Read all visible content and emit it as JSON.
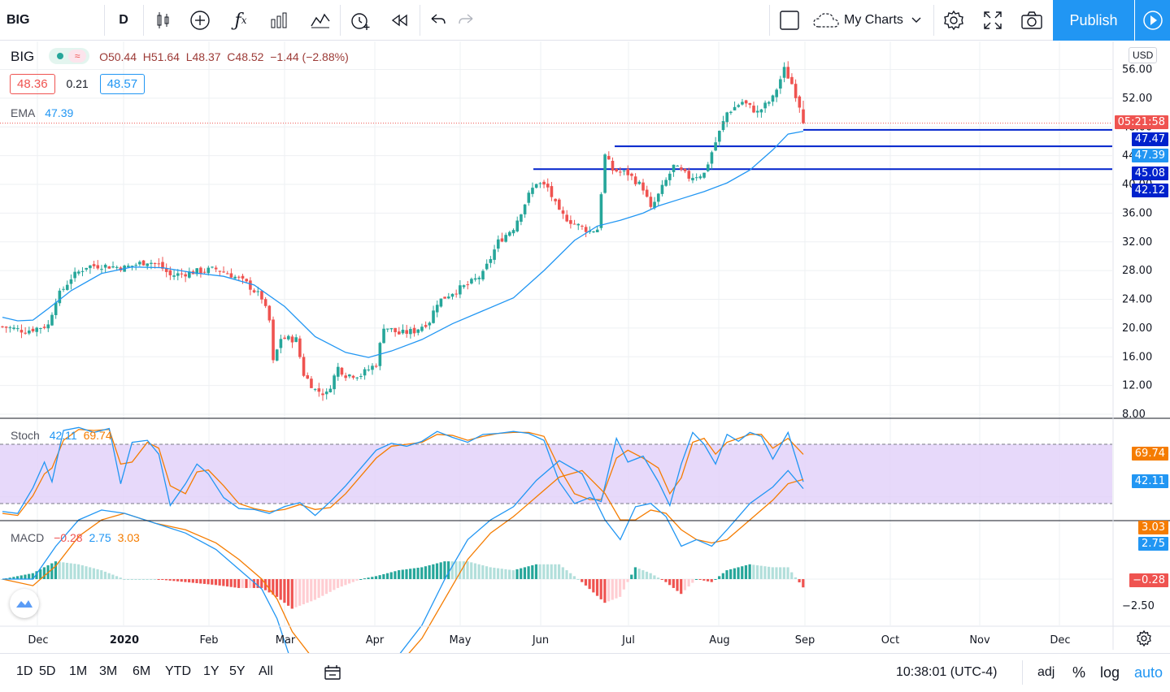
{
  "toolbar": {
    "symbol": "BIG",
    "interval": "D",
    "my_charts": "My Charts",
    "publish": "Publish",
    "icons": [
      "candles-icon",
      "add-icon",
      "fx-icon",
      "bars-icon",
      "templates-icon",
      "alert-icon",
      "replay-icon",
      "undo-icon",
      "redo-icon",
      "square-icon",
      "cloud-icon",
      "gear-icon",
      "fullscreen-icon",
      "camera-icon",
      "play-icon"
    ]
  },
  "legend": {
    "symbol": "BIG",
    "ohlc": "O50.44  H51.64  L48.37  C48.52  −1.44 (−2.88%)",
    "bid": "48.36",
    "spread": "0.21",
    "ask": "48.57",
    "ema_label": "EMA",
    "ema_value": "47.39",
    "stoch_label": "Stoch",
    "stoch_k": "42.11",
    "stoch_d": "69.74",
    "macd_label": "MACD",
    "macd_hist": "−0.28",
    "macd_line": "2.75",
    "macd_signal": "3.03"
  },
  "price_scale": {
    "currency": "USD",
    "countdown": "05:21:58"
  },
  "colors": {
    "up": "#26a69a",
    "down": "#ef5350",
    "ema": "#2196f3",
    "stoch_k": "#2196f3",
    "stoch_d": "#f57c00",
    "band": "#e1cff9",
    "hline": "#0022cc",
    "accent": "#2196f3"
  },
  "chart_data": {
    "type": "candlestick",
    "price_axis": {
      "ticks": [
        "56.00",
        "52.00",
        "48.00",
        "44.00",
        "40.00",
        "36.00",
        "32.00",
        "28.00",
        "24.00",
        "20.00",
        "16.00",
        "12.00",
        "8.00"
      ],
      "ylim": [
        8,
        56
      ]
    },
    "time_axis": [
      "Dec",
      "2020",
      "Feb",
      "Mar",
      "Apr",
      "May",
      "Jun",
      "Jul",
      "Aug",
      "Sep",
      "Oct",
      "Nov",
      "Dec"
    ],
    "last_candle": {
      "open": 50.44,
      "high": 51.64,
      "low": 48.37,
      "close": 48.52
    },
    "ema_points": [
      [
        0,
        21.5
      ],
      [
        4,
        21.0
      ],
      [
        8,
        21.1
      ],
      [
        12,
        22.7
      ],
      [
        18,
        25.2
      ],
      [
        26,
        27.6
      ],
      [
        34,
        28.5
      ],
      [
        42,
        28.4
      ],
      [
        50,
        27.7
      ],
      [
        58,
        27.2
      ],
      [
        66,
        26.0
      ],
      [
        74,
        23.0
      ],
      [
        82,
        18.8
      ],
      [
        90,
        16.6
      ],
      [
        96,
        15.9
      ],
      [
        102,
        16.8
      ],
      [
        110,
        18.4
      ],
      [
        118,
        20.6
      ],
      [
        126,
        22.4
      ],
      [
        134,
        24.2
      ],
      [
        142,
        28.0
      ],
      [
        150,
        32.2
      ],
      [
        156,
        34.2
      ],
      [
        162,
        35.0
      ],
      [
        168,
        36.0
      ],
      [
        172,
        37.0
      ],
      [
        178,
        38.0
      ],
      [
        184,
        39.0
      ],
      [
        190,
        40.2
      ],
      [
        196,
        42.0
      ],
      [
        202,
        44.8
      ],
      [
        206,
        47.0
      ],
      [
        210,
        47.39
      ]
    ],
    "horizontal_lines": [
      47.47,
      45.08,
      42.12
    ],
    "price_labels": {
      "h1": "47.47",
      "ema": "47.39",
      "h2": "45.08",
      "h3": "42.12"
    },
    "stoch": {
      "levels": [
        80,
        20
      ],
      "k_last": 42.11,
      "d_last": 69.74,
      "labels": {
        "d": "69.74",
        "k": "42.11"
      },
      "k_points": [
        [
          0,
          12
        ],
        [
          4,
          10
        ],
        [
          8,
          36
        ],
        [
          11,
          62
        ],
        [
          13,
          42
        ],
        [
          16,
          94
        ],
        [
          20,
          97
        ],
        [
          24,
          92
        ],
        [
          28,
          96
        ],
        [
          31,
          40
        ],
        [
          34,
          82
        ],
        [
          38,
          84
        ],
        [
          41,
          70
        ],
        [
          44,
          18
        ],
        [
          48,
          40
        ],
        [
          51,
          60
        ],
        [
          54,
          50
        ],
        [
          58,
          26
        ],
        [
          62,
          15
        ],
        [
          66,
          14
        ],
        [
          70,
          10
        ],
        [
          74,
          17
        ],
        [
          78,
          21
        ],
        [
          82,
          8
        ],
        [
          86,
          22
        ],
        [
          90,
          38
        ],
        [
          94,
          56
        ],
        [
          98,
          74
        ],
        [
          102,
          81
        ],
        [
          106,
          78
        ],
        [
          110,
          83
        ],
        [
          114,
          93
        ],
        [
          118,
          87
        ],
        [
          122,
          82
        ],
        [
          126,
          90
        ],
        [
          130,
          91
        ],
        [
          134,
          93
        ],
        [
          138,
          91
        ],
        [
          142,
          84
        ],
        [
          146,
          42
        ],
        [
          150,
          20
        ],
        [
          154,
          26
        ],
        [
          157,
          22
        ],
        [
          161,
          86
        ],
        [
          164,
          62
        ],
        [
          168,
          68
        ],
        [
          172,
          42
        ],
        [
          175,
          18
        ],
        [
          178,
          60
        ],
        [
          181,
          92
        ],
        [
          184,
          80
        ],
        [
          187,
          60
        ],
        [
          190,
          90
        ],
        [
          193,
          83
        ],
        [
          196,
          92
        ],
        [
          199,
          88
        ],
        [
          202,
          65
        ],
        [
          206,
          92
        ],
        [
          210,
          42
        ]
      ],
      "d_points": [
        [
          0,
          10
        ],
        [
          4,
          8
        ],
        [
          8,
          28
        ],
        [
          11,
          50
        ],
        [
          13,
          56
        ],
        [
          16,
          84
        ],
        [
          20,
          95
        ],
        [
          24,
          94
        ],
        [
          28,
          95
        ],
        [
          31,
          60
        ],
        [
          34,
          62
        ],
        [
          38,
          82
        ],
        [
          41,
          76
        ],
        [
          44,
          38
        ],
        [
          48,
          30
        ],
        [
          51,
          52
        ],
        [
          54,
          54
        ],
        [
          58,
          38
        ],
        [
          62,
          20
        ],
        [
          66,
          15
        ],
        [
          70,
          12
        ],
        [
          74,
          14
        ],
        [
          78,
          19
        ],
        [
          82,
          14
        ],
        [
          86,
          16
        ],
        [
          90,
          30
        ],
        [
          94,
          48
        ],
        [
          98,
          66
        ],
        [
          102,
          78
        ],
        [
          106,
          80
        ],
        [
          110,
          82
        ],
        [
          114,
          90
        ],
        [
          118,
          89
        ],
        [
          122,
          84
        ],
        [
          126,
          88
        ],
        [
          130,
          91
        ],
        [
          134,
          92
        ],
        [
          138,
          92
        ],
        [
          142,
          88
        ],
        [
          146,
          56
        ],
        [
          150,
          30
        ],
        [
          154,
          24
        ],
        [
          157,
          24
        ],
        [
          161,
          66
        ],
        [
          164,
          74
        ],
        [
          168,
          66
        ],
        [
          172,
          56
        ],
        [
          175,
          30
        ],
        [
          178,
          46
        ],
        [
          181,
          82
        ],
        [
          184,
          86
        ],
        [
          187,
          70
        ],
        [
          190,
          82
        ],
        [
          193,
          86
        ],
        [
          196,
          90
        ],
        [
          199,
          90
        ],
        [
          202,
          76
        ],
        [
          206,
          86
        ],
        [
          210,
          69.74
        ]
      ]
    },
    "macd": {
      "tick": "−2.50",
      "labels": {
        "signal": "3.03",
        "line": "2.75",
        "hist": "−0.28"
      },
      "ylim": [
        -3.8,
        4.8
      ],
      "last": {
        "line": 2.75,
        "signal": 3.03,
        "hist": -0.28
      },
      "line_points": [
        [
          0,
          0.0
        ],
        [
          8,
          0.0
        ],
        [
          14,
          1.0
        ],
        [
          20,
          1.8
        ],
        [
          26,
          2.1
        ],
        [
          32,
          2.0
        ],
        [
          40,
          1.7
        ],
        [
          48,
          1.4
        ],
        [
          56,
          0.9
        ],
        [
          62,
          0.3
        ],
        [
          68,
          -0.3
        ],
        [
          72,
          -1.2
        ],
        [
          76,
          -2.6
        ],
        [
          82,
          -3.2
        ],
        [
          88,
          -3.5
        ],
        [
          94,
          -3.3
        ],
        [
          98,
          -2.9
        ],
        [
          104,
          -2.3
        ],
        [
          110,
          -1.4
        ],
        [
          116,
          0.0
        ],
        [
          122,
          1.2
        ],
        [
          128,
          1.8
        ],
        [
          134,
          2.2
        ],
        [
          140,
          3.0
        ],
        [
          146,
          3.6
        ],
        [
          152,
          3.2
        ],
        [
          158,
          1.8
        ],
        [
          162,
          1.2
        ],
        [
          166,
          2.2
        ],
        [
          170,
          2.3
        ],
        [
          174,
          1.9
        ],
        [
          178,
          1.0
        ],
        [
          182,
          1.2
        ],
        [
          186,
          1.0
        ],
        [
          190,
          1.5
        ],
        [
          196,
          2.3
        ],
        [
          202,
          2.8
        ],
        [
          206,
          3.3
        ],
        [
          210,
          2.75
        ]
      ],
      "signal_points": [
        [
          0,
          0.0
        ],
        [
          8,
          -0.2
        ],
        [
          14,
          0.4
        ],
        [
          20,
          1.3
        ],
        [
          26,
          1.8
        ],
        [
          32,
          2.0
        ],
        [
          40,
          1.7
        ],
        [
          48,
          1.5
        ],
        [
          56,
          1.1
        ],
        [
          62,
          0.6
        ],
        [
          68,
          0.0
        ],
        [
          72,
          -0.6
        ],
        [
          76,
          -1.6
        ],
        [
          82,
          -2.5
        ],
        [
          88,
          -3.2
        ],
        [
          94,
          -3.3
        ],
        [
          98,
          -3.0
        ],
        [
          104,
          -2.6
        ],
        [
          110,
          -1.8
        ],
        [
          116,
          -0.6
        ],
        [
          122,
          0.6
        ],
        [
          128,
          1.4
        ],
        [
          134,
          1.9
        ],
        [
          140,
          2.5
        ],
        [
          146,
          3.1
        ],
        [
          152,
          3.3
        ],
        [
          158,
          2.6
        ],
        [
          162,
          1.8
        ],
        [
          166,
          1.8
        ],
        [
          170,
          2.1
        ],
        [
          174,
          2.0
        ],
        [
          178,
          1.5
        ],
        [
          182,
          1.2
        ],
        [
          186,
          1.1
        ],
        [
          190,
          1.2
        ],
        [
          196,
          1.8
        ],
        [
          202,
          2.4
        ],
        [
          206,
          2.9
        ],
        [
          210,
          3.03
        ]
      ]
    }
  },
  "bottom": {
    "ranges": [
      "1D",
      "5D",
      "1M",
      "3M",
      "6M",
      "YTD",
      "1Y",
      "5Y",
      "All"
    ],
    "time": "10:38:01 (UTC-4)",
    "adj": "adj",
    "pct": "%",
    "log": "log",
    "auto": "auto"
  }
}
